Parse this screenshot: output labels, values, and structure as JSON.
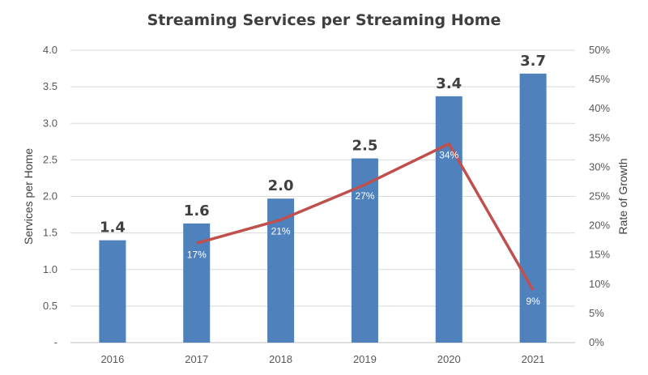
{
  "chart_data": {
    "type": "bar",
    "title": "Streaming Services per Streaming Home",
    "categories": [
      "2016",
      "2017",
      "2018",
      "2019",
      "2020",
      "2021"
    ],
    "ylabel": "Services per Home",
    "y2label": "Rate of Growth",
    "ylim": [
      0,
      4.0
    ],
    "y2lim": [
      0,
      50
    ],
    "y_ticks": [
      "-",
      "0.5",
      "1.0",
      "1.5",
      "2.0",
      "2.5",
      "3.0",
      "3.5",
      "4.0"
    ],
    "y2_ticks": [
      "0%",
      "5%",
      "10%",
      "15%",
      "20%",
      "25%",
      "30%",
      "35%",
      "40%",
      "45%",
      "50%"
    ],
    "grid": true,
    "series": [
      {
        "type": "bar",
        "axis": "left",
        "values": [
          1.4,
          1.63,
          1.97,
          2.52,
          3.37,
          3.68
        ],
        "labels": [
          "1.4",
          "1.6",
          "2.0",
          "2.5",
          "3.4",
          "3.7"
        ],
        "color": "#4f81bd"
      },
      {
        "type": "line",
        "axis": "right",
        "values": [
          null,
          17,
          21,
          27,
          34,
          9
        ],
        "labels": [
          "",
          "17%",
          "21%",
          "27%",
          "34%",
          "9%"
        ],
        "color": "#c0504d"
      }
    ]
  }
}
